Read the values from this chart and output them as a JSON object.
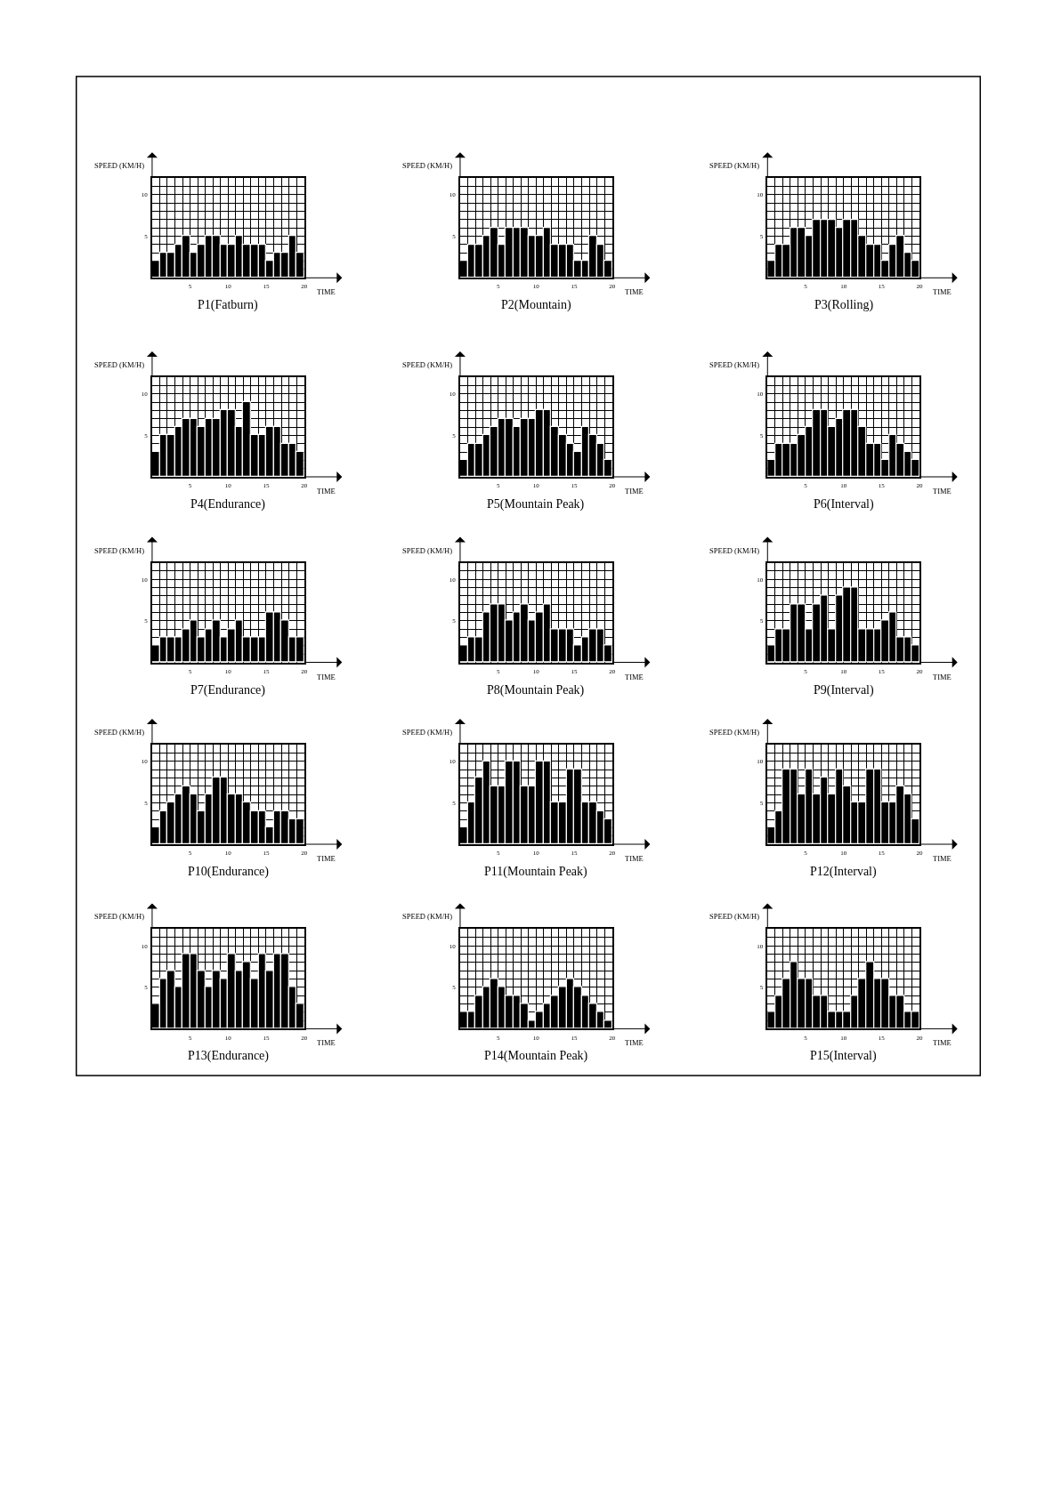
{
  "chart_data": [
    {
      "type": "bar",
      "title": "P1(Fatburn)",
      "xlabel": "TIME",
      "ylabel": "SPEED (KM/H)",
      "x": [
        0.5,
        1.5,
        2.5,
        3.5,
        4.5,
        5.5,
        6.5,
        7.5,
        8.5,
        9.5,
        10.5,
        11.5,
        12.5,
        13.5,
        14.5,
        15.5,
        16.5,
        17.5,
        18.5,
        19.5
      ],
      "values": [
        2,
        3,
        3,
        4,
        5,
        3,
        4,
        5,
        5,
        4,
        4,
        5,
        4,
        4,
        4,
        2,
        3,
        3,
        5,
        3
      ],
      "color": "#000000",
      "xlim": [
        0,
        20
      ],
      "ylim": [
        0,
        12
      ],
      "xticks": [
        {
          "value": 1,
          "label": null
        },
        {
          "value": 2,
          "label": null
        },
        {
          "value": 3,
          "label": null
        },
        {
          "value": 4,
          "label": null
        },
        5,
        {
          "value": 6,
          "label": null
        },
        {
          "value": 7,
          "label": null
        },
        {
          "value": 8,
          "label": null
        },
        {
          "value": 9,
          "label": null
        },
        10,
        {
          "value": 11,
          "label": null
        },
        {
          "value": 12,
          "label": null
        },
        {
          "value": 13,
          "label": null
        },
        {
          "value": 14,
          "label": null
        },
        15,
        {
          "value": 16,
          "label": null
        },
        {
          "value": 17,
          "label": null
        },
        {
          "value": 18,
          "label": null
        },
        {
          "value": 19,
          "label": null
        },
        20
      ],
      "yticks": [
        {
          "value": 1,
          "label": null
        },
        {
          "value": 2,
          "label": null
        },
        {
          "value": 3,
          "label": null
        },
        {
          "value": 4,
          "label": null
        },
        5,
        {
          "value": 6,
          "label": null
        },
        {
          "value": 7,
          "label": null
        },
        {
          "value": 8,
          "label": null
        },
        {
          "value": 9,
          "label": null
        },
        10,
        {
          "value": 11,
          "label": null
        }
      ],
      "grid": true
    },
    {
      "type": "bar",
      "title": "P2(Mountain)",
      "xlabel": "TIME",
      "ylabel": "SPEED (KM/H)",
      "x": [
        0.5,
        1.5,
        2.5,
        3.5,
        4.5,
        5.5,
        6.5,
        7.5,
        8.5,
        9.5,
        10.5,
        11.5,
        12.5,
        13.5,
        14.5,
        15.5,
        16.5,
        17.5,
        18.5,
        19.5
      ],
      "values": [
        2,
        4,
        4,
        5,
        6,
        4,
        6,
        6,
        6,
        5,
        5,
        6,
        4,
        4,
        4,
        2,
        2,
        5,
        4,
        2
      ],
      "color": "#000000",
      "xlim": [
        0,
        20
      ],
      "ylim": [
        0,
        12
      ],
      "xticks": [
        {
          "value": 1,
          "label": null
        },
        {
          "value": 2,
          "label": null
        },
        {
          "value": 3,
          "label": null
        },
        {
          "value": 4,
          "label": null
        },
        5,
        {
          "value": 6,
          "label": null
        },
        {
          "value": 7,
          "label": null
        },
        {
          "value": 8,
          "label": null
        },
        {
          "value": 9,
          "label": null
        },
        10,
        {
          "value": 11,
          "label": null
        },
        {
          "value": 12,
          "label": null
        },
        {
          "value": 13,
          "label": null
        },
        {
          "value": 14,
          "label": null
        },
        15,
        {
          "value": 16,
          "label": null
        },
        {
          "value": 17,
          "label": null
        },
        {
          "value": 18,
          "label": null
        },
        {
          "value": 19,
          "label": null
        },
        20
      ],
      "yticks": [
        {
          "value": 1,
          "label": null
        },
        {
          "value": 2,
          "label": null
        },
        {
          "value": 3,
          "label": null
        },
        {
          "value": 4,
          "label": null
        },
        5,
        {
          "value": 6,
          "label": null
        },
        {
          "value": 7,
          "label": null
        },
        {
          "value": 8,
          "label": null
        },
        {
          "value": 9,
          "label": null
        },
        10,
        {
          "value": 11,
          "label": null
        }
      ],
      "grid": true
    },
    {
      "type": "bar",
      "title": "P3(Rolling)",
      "xlabel": "TIME",
      "ylabel": "SPEED (KM/H)",
      "x": [
        0.5,
        1.5,
        2.5,
        3.5,
        4.5,
        5.5,
        6.5,
        7.5,
        8.5,
        9.5,
        10.5,
        11.5,
        12.5,
        13.5,
        14.5,
        15.5,
        16.5,
        17.5,
        18.5,
        19.5
      ],
      "values": [
        2,
        4,
        4,
        6,
        6,
        5,
        7,
        7,
        7,
        6,
        7,
        7,
        5,
        4,
        4,
        2,
        4,
        5,
        3,
        2
      ],
      "color": "#000000",
      "xlim": [
        0,
        20
      ],
      "ylim": [
        0,
        12
      ],
      "xticks": [
        {
          "value": 1,
          "label": null
        },
        {
          "value": 2,
          "label": null
        },
        {
          "value": 3,
          "label": null
        },
        {
          "value": 4,
          "label": null
        },
        5,
        {
          "value": 6,
          "label": null
        },
        {
          "value": 7,
          "label": null
        },
        {
          "value": 8,
          "label": null
        },
        {
          "value": 9,
          "label": null
        },
        10,
        {
          "value": 11,
          "label": null
        },
        {
          "value": 12,
          "label": null
        },
        {
          "value": 13,
          "label": null
        },
        {
          "value": 14,
          "label": null
        },
        15,
        {
          "value": 16,
          "label": null
        },
        {
          "value": 17,
          "label": null
        },
        {
          "value": 18,
          "label": null
        },
        {
          "value": 19,
          "label": null
        },
        20
      ],
      "yticks": [
        {
          "value": 1,
          "label": null
        },
        {
          "value": 2,
          "label": null
        },
        {
          "value": 3,
          "label": null
        },
        {
          "value": 4,
          "label": null
        },
        5,
        {
          "value": 6,
          "label": null
        },
        {
          "value": 7,
          "label": null
        },
        {
          "value": 8,
          "label": null
        },
        {
          "value": 9,
          "label": null
        },
        10,
        {
          "value": 11,
          "label": null
        }
      ],
      "grid": true
    },
    {
      "type": "bar",
      "title": "P4(Endurance)",
      "xlabel": "TIME",
      "ylabel": "SPEED (KM/H)",
      "x": [
        0.5,
        1.5,
        2.5,
        3.5,
        4.5,
        5.5,
        6.5,
        7.5,
        8.5,
        9.5,
        10.5,
        11.5,
        12.5,
        13.5,
        14.5,
        15.5,
        16.5,
        17.5,
        18.5,
        19.5
      ],
      "values": [
        3,
        5,
        5,
        6,
        7,
        7,
        6,
        7,
        7,
        8,
        8,
        6,
        9,
        5,
        5,
        6,
        6,
        4,
        4,
        3
      ],
      "color": "#000000",
      "xlim": [
        0,
        20
      ],
      "ylim": [
        0,
        12
      ],
      "xticks": [
        {
          "value": 1,
          "label": null
        },
        {
          "value": 2,
          "label": null
        },
        {
          "value": 3,
          "label": null
        },
        {
          "value": 4,
          "label": null
        },
        5,
        {
          "value": 6,
          "label": null
        },
        {
          "value": 7,
          "label": null
        },
        {
          "value": 8,
          "label": null
        },
        {
          "value": 9,
          "label": null
        },
        10,
        {
          "value": 11,
          "label": null
        },
        {
          "value": 12,
          "label": null
        },
        {
          "value": 13,
          "label": null
        },
        {
          "value": 14,
          "label": null
        },
        15,
        {
          "value": 16,
          "label": null
        },
        {
          "value": 17,
          "label": null
        },
        {
          "value": 18,
          "label": null
        },
        {
          "value": 19,
          "label": null
        },
        20
      ],
      "yticks": [
        {
          "value": 1,
          "label": null
        },
        {
          "value": 2,
          "label": null
        },
        {
          "value": 3,
          "label": null
        },
        {
          "value": 4,
          "label": null
        },
        5,
        {
          "value": 6,
          "label": null
        },
        {
          "value": 7,
          "label": null
        },
        {
          "value": 8,
          "label": null
        },
        {
          "value": 9,
          "label": null
        },
        10,
        {
          "value": 11,
          "label": null
        }
      ],
      "grid": true
    },
    {
      "type": "bar",
      "title": "P5(Mountain Peak)",
      "xlabel": "TIME",
      "ylabel": "SPEED (KM/H)",
      "x": [
        0.5,
        1.5,
        2.5,
        3.5,
        4.5,
        5.5,
        6.5,
        7.5,
        8.5,
        9.5,
        10.5,
        11.5,
        12.5,
        13.5,
        14.5,
        15.5,
        16.5,
        17.5,
        18.5,
        19.5
      ],
      "values": [
        2,
        4,
        4,
        5,
        6,
        7,
        7,
        6,
        7,
        7,
        8,
        8,
        6,
        5,
        4,
        3,
        6,
        5,
        4,
        2
      ],
      "color": "#000000",
      "xlim": [
        0,
        20
      ],
      "ylim": [
        0,
        12
      ],
      "xticks": [
        {
          "value": 1,
          "label": null
        },
        {
          "value": 2,
          "label": null
        },
        {
          "value": 3,
          "label": null
        },
        {
          "value": 4,
          "label": null
        },
        5,
        {
          "value": 6,
          "label": null
        },
        {
          "value": 7,
          "label": null
        },
        {
          "value": 8,
          "label": null
        },
        {
          "value": 9,
          "label": null
        },
        10,
        {
          "value": 11,
          "label": null
        },
        {
          "value": 12,
          "label": null
        },
        {
          "value": 13,
          "label": null
        },
        {
          "value": 14,
          "label": null
        },
        15,
        {
          "value": 16,
          "label": null
        },
        {
          "value": 17,
          "label": null
        },
        {
          "value": 18,
          "label": null
        },
        {
          "value": 19,
          "label": null
        },
        20
      ],
      "yticks": [
        {
          "value": 1,
          "label": null
        },
        {
          "value": 2,
          "label": null
        },
        {
          "value": 3,
          "label": null
        },
        {
          "value": 4,
          "label": null
        },
        5,
        {
          "value": 6,
          "label": null
        },
        {
          "value": 7,
          "label": null
        },
        {
          "value": 8,
          "label": null
        },
        {
          "value": 9,
          "label": null
        },
        10,
        {
          "value": 11,
          "label": null
        }
      ],
      "grid": true
    },
    {
      "type": "bar",
      "title": "P6(Interval)",
      "xlabel": "TIME",
      "ylabel": "SPEED (KM/H)",
      "x": [
        0.5,
        1.5,
        2.5,
        3.5,
        4.5,
        5.5,
        6.5,
        7.5,
        8.5,
        9.5,
        10.5,
        11.5,
        12.5,
        13.5,
        14.5,
        15.5,
        16.5,
        17.5,
        18.5,
        19.5
      ],
      "values": [
        2,
        4,
        4,
        4,
        5,
        6,
        8,
        8,
        6,
        7,
        8,
        8,
        6,
        4,
        4,
        2,
        5,
        4,
        3,
        2
      ],
      "color": "#000000",
      "xlim": [
        0,
        20
      ],
      "ylim": [
        0,
        12
      ],
      "xticks": [
        {
          "value": 1,
          "label": null
        },
        {
          "value": 2,
          "label": null
        },
        {
          "value": 3,
          "label": null
        },
        {
          "value": 4,
          "label": null
        },
        5,
        {
          "value": 6,
          "label": null
        },
        {
          "value": 7,
          "label": null
        },
        {
          "value": 8,
          "label": null
        },
        {
          "value": 9,
          "label": null
        },
        10,
        {
          "value": 11,
          "label": null
        },
        {
          "value": 12,
          "label": null
        },
        {
          "value": 13,
          "label": null
        },
        {
          "value": 14,
          "label": null
        },
        15,
        {
          "value": 16,
          "label": null
        },
        {
          "value": 17,
          "label": null
        },
        {
          "value": 18,
          "label": null
        },
        {
          "value": 19,
          "label": null
        },
        20
      ],
      "yticks": [
        {
          "value": 1,
          "label": null
        },
        {
          "value": 2,
          "label": null
        },
        {
          "value": 3,
          "label": null
        },
        {
          "value": 4,
          "label": null
        },
        5,
        {
          "value": 6,
          "label": null
        },
        {
          "value": 7,
          "label": null
        },
        {
          "value": 8,
          "label": null
        },
        {
          "value": 9,
          "label": null
        },
        10,
        {
          "value": 11,
          "label": null
        }
      ],
      "grid": true
    },
    {
      "type": "bar",
      "title": "P7(Endurance)",
      "xlabel": "TIME",
      "ylabel": "SPEED (KM/H)",
      "x": [
        0.5,
        1.5,
        2.5,
        3.5,
        4.5,
        5.5,
        6.5,
        7.5,
        8.5,
        9.5,
        10.5,
        11.5,
        12.5,
        13.5,
        14.5,
        15.5,
        16.5,
        17.5,
        18.5,
        19.5
      ],
      "values": [
        2,
        3,
        3,
        3,
        4,
        5,
        3,
        4,
        5,
        3,
        4,
        5,
        3,
        3,
        3,
        6,
        6,
        5,
        3,
        3
      ],
      "color": "#000000",
      "xlim": [
        0,
        20
      ],
      "ylim": [
        0,
        12
      ],
      "xticks": [
        {
          "value": 1,
          "label": null
        },
        {
          "value": 2,
          "label": null
        },
        {
          "value": 3,
          "label": null
        },
        {
          "value": 4,
          "label": null
        },
        5,
        {
          "value": 6,
          "label": null
        },
        {
          "value": 7,
          "label": null
        },
        {
          "value": 8,
          "label": null
        },
        {
          "value": 9,
          "label": null
        },
        10,
        {
          "value": 11,
          "label": null
        },
        {
          "value": 12,
          "label": null
        },
        {
          "value": 13,
          "label": null
        },
        {
          "value": 14,
          "label": null
        },
        15,
        {
          "value": 16,
          "label": null
        },
        {
          "value": 17,
          "label": null
        },
        {
          "value": 18,
          "label": null
        },
        {
          "value": 19,
          "label": null
        },
        20
      ],
      "yticks": [
        {
          "value": 1,
          "label": null
        },
        {
          "value": 2,
          "label": null
        },
        {
          "value": 3,
          "label": null
        },
        {
          "value": 4,
          "label": null
        },
        5,
        {
          "value": 6,
          "label": null
        },
        {
          "value": 7,
          "label": null
        },
        {
          "value": 8,
          "label": null
        },
        {
          "value": 9,
          "label": null
        },
        10,
        {
          "value": 11,
          "label": null
        }
      ],
      "grid": true
    },
    {
      "type": "bar",
      "title": "P8(Mountain Peak)",
      "xlabel": "TIME",
      "ylabel": "SPEED (KM/H)",
      "x": [
        0.5,
        1.5,
        2.5,
        3.5,
        4.5,
        5.5,
        6.5,
        7.5,
        8.5,
        9.5,
        10.5,
        11.5,
        12.5,
        13.5,
        14.5,
        15.5,
        16.5,
        17.5,
        18.5,
        19.5
      ],
      "values": [
        2,
        3,
        3,
        6,
        7,
        7,
        5,
        6,
        7,
        5,
        6,
        7,
        4,
        4,
        4,
        2,
        3,
        4,
        4,
        2
      ],
      "color": "#000000",
      "xlim": [
        0,
        20
      ],
      "ylim": [
        0,
        12
      ],
      "xticks": [
        {
          "value": 1,
          "label": null
        },
        {
          "value": 2,
          "label": null
        },
        {
          "value": 3,
          "label": null
        },
        {
          "value": 4,
          "label": null
        },
        5,
        {
          "value": 6,
          "label": null
        },
        {
          "value": 7,
          "label": null
        },
        {
          "value": 8,
          "label": null
        },
        {
          "value": 9,
          "label": null
        },
        10,
        {
          "value": 11,
          "label": null
        },
        {
          "value": 12,
          "label": null
        },
        {
          "value": 13,
          "label": null
        },
        {
          "value": 14,
          "label": null
        },
        15,
        {
          "value": 16,
          "label": null
        },
        {
          "value": 17,
          "label": null
        },
        {
          "value": 18,
          "label": null
        },
        {
          "value": 19,
          "label": null
        },
        20
      ],
      "yticks": [
        {
          "value": 1,
          "label": null
        },
        {
          "value": 2,
          "label": null
        },
        {
          "value": 3,
          "label": null
        },
        {
          "value": 4,
          "label": null
        },
        5,
        {
          "value": 6,
          "label": null
        },
        {
          "value": 7,
          "label": null
        },
        {
          "value": 8,
          "label": null
        },
        {
          "value": 9,
          "label": null
        },
        10,
        {
          "value": 11,
          "label": null
        }
      ],
      "grid": true
    },
    {
      "type": "bar",
      "title": "P9(Interval)",
      "xlabel": "TIME",
      "ylabel": "SPEED (KM/H)",
      "x": [
        0.5,
        1.5,
        2.5,
        3.5,
        4.5,
        5.5,
        6.5,
        7.5,
        8.5,
        9.5,
        10.5,
        11.5,
        12.5,
        13.5,
        14.5,
        15.5,
        16.5,
        17.5,
        18.5,
        19.5
      ],
      "values": [
        2,
        4,
        4,
        7,
        7,
        4,
        7,
        8,
        4,
        8,
        9,
        9,
        4,
        4,
        4,
        5,
        6,
        3,
        3,
        2
      ],
      "color": "#000000",
      "xlim": [
        0,
        20
      ],
      "ylim": [
        0,
        12
      ],
      "xticks": [
        {
          "value": 1,
          "label": null
        },
        {
          "value": 2,
          "label": null
        },
        {
          "value": 3,
          "label": null
        },
        {
          "value": 4,
          "label": null
        },
        5,
        {
          "value": 6,
          "label": null
        },
        {
          "value": 7,
          "label": null
        },
        {
          "value": 8,
          "label": null
        },
        {
          "value": 9,
          "label": null
        },
        10,
        {
          "value": 11,
          "label": null
        },
        {
          "value": 12,
          "label": null
        },
        {
          "value": 13,
          "label": null
        },
        {
          "value": 14,
          "label": null
        },
        15,
        {
          "value": 16,
          "label": null
        },
        {
          "value": 17,
          "label": null
        },
        {
          "value": 18,
          "label": null
        },
        {
          "value": 19,
          "label": null
        },
        20
      ],
      "yticks": [
        {
          "value": 1,
          "label": null
        },
        {
          "value": 2,
          "label": null
        },
        {
          "value": 3,
          "label": null
        },
        {
          "value": 4,
          "label": null
        },
        5,
        {
          "value": 6,
          "label": null
        },
        {
          "value": 7,
          "label": null
        },
        {
          "value": 8,
          "label": null
        },
        {
          "value": 9,
          "label": null
        },
        10,
        {
          "value": 11,
          "label": null
        }
      ],
      "grid": true
    },
    {
      "type": "bar",
      "title": "P10(Endurance)",
      "xlabel": "TIME",
      "ylabel": "SPEED (KM/H)",
      "x": [
        0.5,
        1.5,
        2.5,
        3.5,
        4.5,
        5.5,
        6.5,
        7.5,
        8.5,
        9.5,
        10.5,
        11.5,
        12.5,
        13.5,
        14.5,
        15.5,
        16.5,
        17.5,
        18.5,
        19.5
      ],
      "values": [
        2,
        4,
        5,
        6,
        7,
        6,
        4,
        6,
        8,
        8,
        6,
        6,
        5,
        4,
        4,
        2,
        4,
        4,
        3,
        3
      ],
      "color": "#000000",
      "xlim": [
        0,
        20
      ],
      "ylim": [
        0,
        12
      ],
      "xticks": [
        {
          "value": 1,
          "label": null
        },
        {
          "value": 2,
          "label": null
        },
        {
          "value": 3,
          "label": null
        },
        {
          "value": 4,
          "label": null
        },
        5,
        {
          "value": 6,
          "label": null
        },
        {
          "value": 7,
          "label": null
        },
        {
          "value": 8,
          "label": null
        },
        {
          "value": 9,
          "label": null
        },
        10,
        {
          "value": 11,
          "label": null
        },
        {
          "value": 12,
          "label": null
        },
        {
          "value": 13,
          "label": null
        },
        {
          "value": 14,
          "label": null
        },
        15,
        {
          "value": 16,
          "label": null
        },
        {
          "value": 17,
          "label": null
        },
        {
          "value": 18,
          "label": null
        },
        {
          "value": 19,
          "label": null
        },
        20
      ],
      "yticks": [
        {
          "value": 1,
          "label": null
        },
        {
          "value": 2,
          "label": null
        },
        {
          "value": 3,
          "label": null
        },
        {
          "value": 4,
          "label": null
        },
        5,
        {
          "value": 6,
          "label": null
        },
        {
          "value": 7,
          "label": null
        },
        {
          "value": 8,
          "label": null
        },
        {
          "value": 9,
          "label": null
        },
        10,
        {
          "value": 11,
          "label": null
        }
      ],
      "grid": true
    },
    {
      "type": "bar",
      "title": "P11(Mountain Peak)",
      "xlabel": "TIME",
      "ylabel": "SPEED (KM/H)",
      "x": [
        0.5,
        1.5,
        2.5,
        3.5,
        4.5,
        5.5,
        6.5,
        7.5,
        8.5,
        9.5,
        10.5,
        11.5,
        12.5,
        13.5,
        14.5,
        15.5,
        16.5,
        17.5,
        18.5,
        19.5
      ],
      "values": [
        2,
        5,
        8,
        10,
        7,
        7,
        10,
        10,
        7,
        7,
        10,
        10,
        5,
        5,
        9,
        9,
        5,
        5,
        4,
        3
      ],
      "color": "#000000",
      "xlim": [
        0,
        20
      ],
      "ylim": [
        0,
        12
      ],
      "xticks": [
        {
          "value": 1,
          "label": null
        },
        {
          "value": 2,
          "label": null
        },
        {
          "value": 3,
          "label": null
        },
        {
          "value": 4,
          "label": null
        },
        5,
        {
          "value": 6,
          "label": null
        },
        {
          "value": 7,
          "label": null
        },
        {
          "value": 8,
          "label": null
        },
        {
          "value": 9,
          "label": null
        },
        10,
        {
          "value": 11,
          "label": null
        },
        {
          "value": 12,
          "label": null
        },
        {
          "value": 13,
          "label": null
        },
        {
          "value": 14,
          "label": null
        },
        15,
        {
          "value": 16,
          "label": null
        },
        {
          "value": 17,
          "label": null
        },
        {
          "value": 18,
          "label": null
        },
        {
          "value": 19,
          "label": null
        },
        20
      ],
      "yticks": [
        {
          "value": 1,
          "label": null
        },
        {
          "value": 2,
          "label": null
        },
        {
          "value": 3,
          "label": null
        },
        {
          "value": 4,
          "label": null
        },
        5,
        {
          "value": 6,
          "label": null
        },
        {
          "value": 7,
          "label": null
        },
        {
          "value": 8,
          "label": null
        },
        {
          "value": 9,
          "label": null
        },
        10,
        {
          "value": 11,
          "label": null
        }
      ],
      "grid": true
    },
    {
      "type": "bar",
      "title": "P12(Interval)",
      "xlabel": "TIME",
      "ylabel": "SPEED (KM/H)",
      "x": [
        0.5,
        1.5,
        2.5,
        3.5,
        4.5,
        5.5,
        6.5,
        7.5,
        8.5,
        9.5,
        10.5,
        11.5,
        12.5,
        13.5,
        14.5,
        15.5,
        16.5,
        17.5,
        18.5,
        19.5
      ],
      "values": [
        2,
        4,
        9,
        9,
        6,
        9,
        6,
        8,
        6,
        9,
        7,
        5,
        5,
        9,
        9,
        5,
        5,
        7,
        6,
        3
      ],
      "color": "#000000",
      "xlim": [
        0,
        20
      ],
      "ylim": [
        0,
        12
      ],
      "xticks": [
        {
          "value": 1,
          "label": null
        },
        {
          "value": 2,
          "label": null
        },
        {
          "value": 3,
          "label": null
        },
        {
          "value": 4,
          "label": null
        },
        5,
        {
          "value": 6,
          "label": null
        },
        {
          "value": 7,
          "label": null
        },
        {
          "value": 8,
          "label": null
        },
        {
          "value": 9,
          "label": null
        },
        10,
        {
          "value": 11,
          "label": null
        },
        {
          "value": 12,
          "label": null
        },
        {
          "value": 13,
          "label": null
        },
        {
          "value": 14,
          "label": null
        },
        15,
        {
          "value": 16,
          "label": null
        },
        {
          "value": 17,
          "label": null
        },
        {
          "value": 18,
          "label": null
        },
        {
          "value": 19,
          "label": null
        },
        20
      ],
      "yticks": [
        {
          "value": 1,
          "label": null
        },
        {
          "value": 2,
          "label": null
        },
        {
          "value": 3,
          "label": null
        },
        {
          "value": 4,
          "label": null
        },
        5,
        {
          "value": 6,
          "label": null
        },
        {
          "value": 7,
          "label": null
        },
        {
          "value": 8,
          "label": null
        },
        {
          "value": 9,
          "label": null
        },
        10,
        {
          "value": 11,
          "label": null
        }
      ],
      "grid": true
    },
    {
      "type": "bar",
      "title": "P13(Endurance)",
      "xlabel": "TIME",
      "ylabel": "SPEED (KM/H)",
      "x": [
        0.5,
        1.5,
        2.5,
        3.5,
        4.5,
        5.5,
        6.5,
        7.5,
        8.5,
        9.5,
        10.5,
        11.5,
        12.5,
        13.5,
        14.5,
        15.5,
        16.5,
        17.5,
        18.5,
        19.5
      ],
      "values": [
        3,
        6,
        7,
        5,
        9,
        9,
        7,
        5,
        7,
        6,
        9,
        7,
        8,
        6,
        9,
        7,
        9,
        9,
        5,
        3
      ],
      "color": "#000000",
      "xlim": [
        0,
        20
      ],
      "ylim": [
        0,
        12
      ],
      "xticks": [
        {
          "value": 1,
          "label": null
        },
        {
          "value": 2,
          "label": null
        },
        {
          "value": 3,
          "label": null
        },
        {
          "value": 4,
          "label": null
        },
        5,
        {
          "value": 6,
          "label": null
        },
        {
          "value": 7,
          "label": null
        },
        {
          "value": 8,
          "label": null
        },
        {
          "value": 9,
          "label": null
        },
        10,
        {
          "value": 11,
          "label": null
        },
        {
          "value": 12,
          "label": null
        },
        {
          "value": 13,
          "label": null
        },
        {
          "value": 14,
          "label": null
        },
        15,
        {
          "value": 16,
          "label": null
        },
        {
          "value": 17,
          "label": null
        },
        {
          "value": 18,
          "label": null
        },
        {
          "value": 19,
          "label": null
        },
        20
      ],
      "yticks": [
        {
          "value": 1,
          "label": null
        },
        {
          "value": 2,
          "label": null
        },
        {
          "value": 3,
          "label": null
        },
        {
          "value": 4,
          "label": null
        },
        5,
        {
          "value": 6,
          "label": null
        },
        {
          "value": 7,
          "label": null
        },
        {
          "value": 8,
          "label": null
        },
        {
          "value": 9,
          "label": null
        },
        10,
        {
          "value": 11,
          "label": null
        }
      ],
      "grid": true
    },
    {
      "type": "bar",
      "title": "P14(Mountain Peak)",
      "xlabel": "TIME",
      "ylabel": "SPEED (KM/H)",
      "x": [
        0.5,
        1.5,
        2.5,
        3.5,
        4.5,
        5.5,
        6.5,
        7.5,
        8.5,
        9.5,
        10.5,
        11.5,
        12.5,
        13.5,
        14.5,
        15.5,
        16.5,
        17.5,
        18.5,
        19.5
      ],
      "values": [
        2,
        2,
        4,
        5,
        6,
        5,
        4,
        4,
        3,
        1,
        2,
        3,
        4,
        5,
        6,
        5,
        4,
        3,
        2,
        1
      ],
      "color": "#000000",
      "xlim": [
        0,
        20
      ],
      "ylim": [
        0,
        12
      ],
      "xticks": [
        {
          "value": 1,
          "label": null
        },
        {
          "value": 2,
          "label": null
        },
        {
          "value": 3,
          "label": null
        },
        {
          "value": 4,
          "label": null
        },
        5,
        {
          "value": 6,
          "label": null
        },
        {
          "value": 7,
          "label": null
        },
        {
          "value": 8,
          "label": null
        },
        {
          "value": 9,
          "label": null
        },
        10,
        {
          "value": 11,
          "label": null
        },
        {
          "value": 12,
          "label": null
        },
        {
          "value": 13,
          "label": null
        },
        {
          "value": 14,
          "label": null
        },
        15,
        {
          "value": 16,
          "label": null
        },
        {
          "value": 17,
          "label": null
        },
        {
          "value": 18,
          "label": null
        },
        {
          "value": 19,
          "label": null
        },
        20
      ],
      "yticks": [
        {
          "value": 1,
          "label": null
        },
        {
          "value": 2,
          "label": null
        },
        {
          "value": 3,
          "label": null
        },
        {
          "value": 4,
          "label": null
        },
        5,
        {
          "value": 6,
          "label": null
        },
        {
          "value": 7,
          "label": null
        },
        {
          "value": 8,
          "label": null
        },
        {
          "value": 9,
          "label": null
        },
        10,
        {
          "value": 11,
          "label": null
        }
      ],
      "grid": true
    },
    {
      "type": "bar",
      "title": "P15(Interval)",
      "xlabel": "TIME",
      "ylabel": "SPEED (KM/H)",
      "x": [
        0.5,
        1.5,
        2.5,
        3.5,
        4.5,
        5.5,
        6.5,
        7.5,
        8.5,
        9.5,
        10.5,
        11.5,
        12.5,
        13.5,
        14.5,
        15.5,
        16.5,
        17.5,
        18.5,
        19.5
      ],
      "values": [
        2,
        4,
        6,
        8,
        6,
        6,
        4,
        4,
        2,
        2,
        2,
        4,
        6,
        8,
        6,
        6,
        4,
        4,
        2,
        2
      ],
      "color": "#000000",
      "xlim": [
        0,
        20
      ],
      "ylim": [
        0,
        12
      ],
      "xticks": [
        {
          "value": 1,
          "label": null
        },
        {
          "value": 2,
          "label": null
        },
        {
          "value": 3,
          "label": null
        },
        {
          "value": 4,
          "label": null
        },
        5,
        {
          "value": 6,
          "label": null
        },
        {
          "value": 7,
          "label": null
        },
        {
          "value": 8,
          "label": null
        },
        {
          "value": 9,
          "label": null
        },
        10,
        {
          "value": 11,
          "label": null
        },
        {
          "value": 12,
          "label": null
        },
        {
          "value": 13,
          "label": null
        },
        {
          "value": 14,
          "label": null
        },
        15,
        {
          "value": 16,
          "label": null
        },
        {
          "value": 17,
          "label": null
        },
        {
          "value": 18,
          "label": null
        },
        {
          "value": 19,
          "label": null
        },
        20
      ],
      "yticks": [
        {
          "value": 1,
          "label": null
        },
        {
          "value": 2,
          "label": null
        },
        {
          "value": 3,
          "label": null
        },
        {
          "value": 4,
          "label": null
        },
        5,
        {
          "value": 6,
          "label": null
        },
        {
          "value": 7,
          "label": null
        },
        {
          "value": 8,
          "label": null
        },
        {
          "value": 9,
          "label": null
        },
        10,
        {
          "value": 11,
          "label": null
        }
      ],
      "grid": true
    }
  ]
}
